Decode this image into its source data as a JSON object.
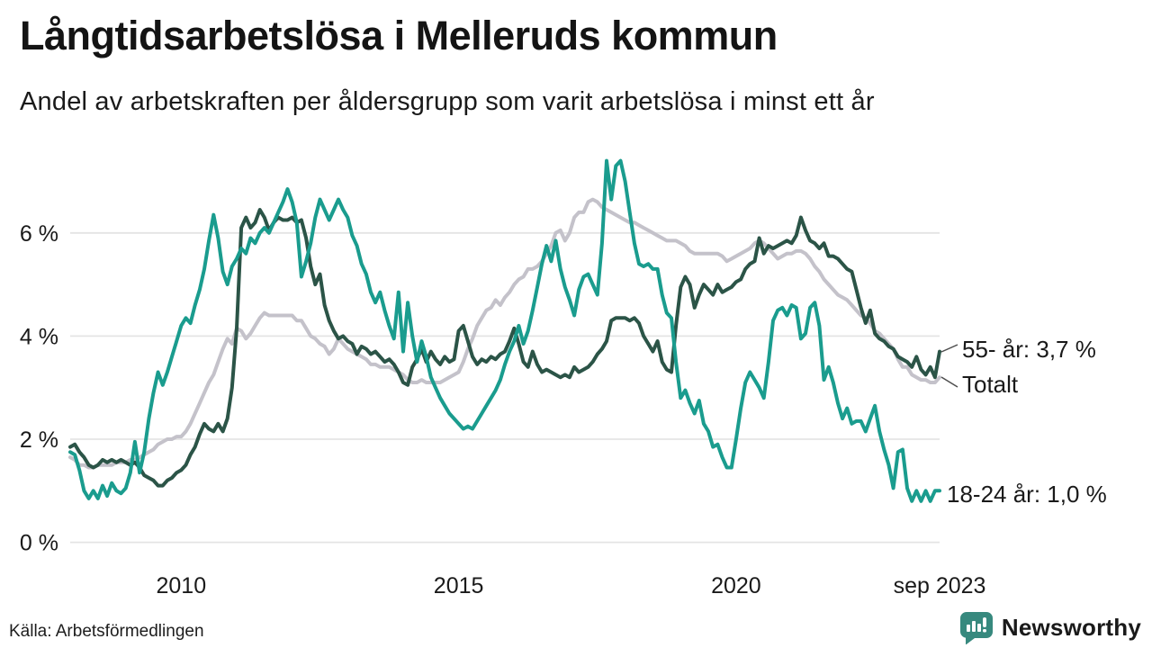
{
  "title": "Långtidsarbetslösa i Melleruds kommun",
  "subtitle": "Andel av arbetskraften per åldersgrupp som varit arbetslösa i minst ett år",
  "source": "Källa: Arbetsförmedlingen",
  "branding": {
    "name": "Newsworthy",
    "color": "#37897e"
  },
  "colors": {
    "series_18_24": "#1a9c8e",
    "series_55_plus": "#2b5447",
    "series_total": "#c4c2ca",
    "grid": "#e4e4e4",
    "text": "#1a1a1a",
    "leader_line": "#4d4d4d"
  },
  "chart_data": {
    "type": "line",
    "title": "Långtidsarbetslösa i Melleruds kommun",
    "subtitle": "Andel av arbetskraften per åldersgrupp som varit arbetslösa i minst ett år",
    "unit": "% av arbetskraften",
    "frequency": "monthly",
    "x_start": "2008-01",
    "x_end": "2023-09",
    "ylim": [
      0,
      7.5
    ],
    "grid": true,
    "legend_position": "line-end-labels",
    "y_ticks": [
      {
        "value": 0,
        "label": "0 %"
      },
      {
        "value": 2,
        "label": "2 %"
      },
      {
        "value": 4,
        "label": "4 %"
      },
      {
        "value": 6,
        "label": "6 %"
      }
    ],
    "x_ticks": [
      {
        "t": 2010.0,
        "label": "2010"
      },
      {
        "t": 2015.0,
        "label": "2015"
      },
      {
        "t": 2020.0,
        "label": "2020"
      },
      {
        "t": 2023.667,
        "label": "sep 2023"
      }
    ],
    "series": [
      {
        "name": "Totalt",
        "color": "#c4c2ca",
        "end_label": "Totalt",
        "current_value": 3.2,
        "values": [
          1.65,
          1.6,
          1.5,
          1.5,
          1.45,
          1.45,
          1.5,
          1.5,
          1.5,
          1.5,
          1.55,
          1.55,
          1.55,
          1.6,
          1.6,
          1.65,
          1.7,
          1.75,
          1.8,
          1.9,
          1.95,
          2.0,
          2.0,
          2.05,
          2.05,
          2.15,
          2.3,
          2.5,
          2.7,
          2.9,
          3.1,
          3.25,
          3.5,
          3.75,
          3.95,
          3.85,
          4.15,
          4.1,
          3.95,
          4.05,
          4.2,
          4.35,
          4.45,
          4.4,
          4.4,
          4.4,
          4.4,
          4.4,
          4.4,
          4.3,
          4.3,
          4.15,
          4.0,
          3.95,
          3.85,
          3.8,
          3.65,
          3.75,
          3.95,
          3.85,
          3.75,
          3.7,
          3.65,
          3.6,
          3.55,
          3.45,
          3.45,
          3.4,
          3.4,
          3.4,
          3.35,
          3.3,
          3.25,
          3.15,
          3.1,
          3.1,
          3.15,
          3.1,
          3.1,
          3.1,
          3.1,
          3.15,
          3.2,
          3.25,
          3.3,
          3.5,
          3.75,
          3.95,
          4.2,
          4.35,
          4.5,
          4.55,
          4.7,
          4.6,
          4.75,
          4.85,
          5.0,
          5.1,
          5.15,
          5.3,
          5.3,
          5.35,
          5.45,
          5.6,
          5.75,
          6.0,
          6.05,
          5.85,
          6.0,
          6.3,
          6.4,
          6.4,
          6.6,
          6.65,
          6.6,
          6.5,
          6.45,
          6.4,
          6.35,
          6.3,
          6.25,
          6.2,
          6.2,
          6.15,
          6.1,
          6.05,
          6.0,
          5.95,
          5.9,
          5.85,
          5.85,
          5.85,
          5.8,
          5.75,
          5.65,
          5.6,
          5.6,
          5.6,
          5.6,
          5.6,
          5.6,
          5.55,
          5.45,
          5.5,
          5.55,
          5.6,
          5.65,
          5.7,
          5.8,
          5.85,
          5.8,
          5.7,
          5.6,
          5.5,
          5.55,
          5.6,
          5.6,
          5.65,
          5.65,
          5.6,
          5.5,
          5.35,
          5.25,
          5.1,
          5.0,
          4.9,
          4.8,
          4.75,
          4.7,
          4.6,
          4.5,
          4.4,
          4.35,
          4.25,
          4.1,
          4.05,
          3.95,
          3.85,
          3.75,
          3.55,
          3.4,
          3.4,
          3.25,
          3.2,
          3.15,
          3.15,
          3.1,
          3.1,
          3.2
        ]
      },
      {
        "name": "55- år",
        "color": "#2b5447",
        "end_label": "55- år: 3,7 %",
        "current_value": 3.7,
        "values": [
          1.85,
          1.9,
          1.75,
          1.65,
          1.5,
          1.45,
          1.5,
          1.6,
          1.55,
          1.6,
          1.55,
          1.6,
          1.55,
          1.5,
          1.55,
          1.45,
          1.3,
          1.25,
          1.2,
          1.1,
          1.1,
          1.2,
          1.25,
          1.35,
          1.4,
          1.5,
          1.7,
          1.85,
          2.1,
          2.3,
          2.2,
          2.15,
          2.3,
          2.15,
          2.4,
          3.0,
          4.15,
          6.1,
          6.3,
          6.1,
          6.2,
          6.45,
          6.3,
          6.05,
          6.2,
          6.3,
          6.25,
          6.25,
          6.3,
          6.2,
          6.25,
          5.9,
          5.35,
          5.0,
          5.2,
          4.6,
          4.3,
          4.1,
          3.95,
          4.0,
          3.9,
          3.85,
          3.65,
          3.8,
          3.75,
          3.65,
          3.7,
          3.6,
          3.5,
          3.55,
          3.45,
          3.3,
          3.1,
          3.05,
          3.4,
          3.55,
          3.75,
          3.5,
          3.7,
          3.55,
          3.45,
          3.6,
          3.5,
          3.55,
          4.1,
          4.2,
          3.9,
          3.6,
          3.45,
          3.55,
          3.5,
          3.6,
          3.55,
          3.65,
          3.7,
          3.9,
          4.15,
          3.85,
          3.5,
          3.4,
          3.7,
          3.45,
          3.3,
          3.35,
          3.3,
          3.25,
          3.2,
          3.25,
          3.2,
          3.4,
          3.3,
          3.35,
          3.4,
          3.5,
          3.65,
          3.75,
          3.9,
          4.3,
          4.35,
          4.35,
          4.35,
          4.3,
          4.35,
          4.25,
          4.0,
          3.85,
          3.7,
          3.9,
          3.5,
          3.35,
          3.3,
          4.2,
          4.95,
          5.15,
          5.0,
          4.55,
          4.8,
          5.0,
          4.9,
          4.8,
          5.0,
          4.85,
          4.9,
          4.95,
          5.05,
          5.1,
          5.3,
          5.4,
          5.45,
          5.9,
          5.6,
          5.75,
          5.7,
          5.75,
          5.8,
          5.85,
          5.8,
          5.95,
          6.3,
          6.05,
          5.85,
          5.8,
          5.7,
          5.8,
          5.55,
          5.55,
          5.5,
          5.4,
          5.3,
          5.25,
          4.9,
          4.55,
          4.25,
          4.5,
          4.05,
          3.95,
          3.9,
          3.8,
          3.75,
          3.6,
          3.55,
          3.5,
          3.4,
          3.6,
          3.35,
          3.25,
          3.4,
          3.2,
          3.7
        ]
      },
      {
        "name": "18-24 år",
        "color": "#1a9c8e",
        "end_label": "18-24 år: 1,0 %",
        "current_value": 1.0,
        "values": [
          1.75,
          1.7,
          1.4,
          1.0,
          0.85,
          1.0,
          0.85,
          1.1,
          0.9,
          1.15,
          1.0,
          0.95,
          1.05,
          1.35,
          1.95,
          1.35,
          1.75,
          2.4,
          2.9,
          3.3,
          3.05,
          3.3,
          3.6,
          3.9,
          4.2,
          4.35,
          4.25,
          4.6,
          4.9,
          5.3,
          5.85,
          6.35,
          5.9,
          5.25,
          5.0,
          5.35,
          5.5,
          5.7,
          5.6,
          5.9,
          5.8,
          6.0,
          6.1,
          6.0,
          6.2,
          6.4,
          6.6,
          6.85,
          6.6,
          6.2,
          5.15,
          5.45,
          5.8,
          6.3,
          6.65,
          6.45,
          6.25,
          6.45,
          6.65,
          6.45,
          6.3,
          5.95,
          5.75,
          5.4,
          5.2,
          4.85,
          4.65,
          4.85,
          4.5,
          4.2,
          3.95,
          4.85,
          3.7,
          4.65,
          4.0,
          3.5,
          3.9,
          3.6,
          3.2,
          3.0,
          2.8,
          2.65,
          2.5,
          2.4,
          2.3,
          2.2,
          2.25,
          2.2,
          2.35,
          2.5,
          2.65,
          2.8,
          2.95,
          3.15,
          3.45,
          3.7,
          3.9,
          4.2,
          3.85,
          4.1,
          4.5,
          4.95,
          5.4,
          5.75,
          5.45,
          5.85,
          5.3,
          4.95,
          4.7,
          4.4,
          4.9,
          5.15,
          5.2,
          5.0,
          4.8,
          5.8,
          7.4,
          6.65,
          7.3,
          7.4,
          7.0,
          6.4,
          5.8,
          5.4,
          5.35,
          5.4,
          5.3,
          5.3,
          4.8,
          4.45,
          4.35,
          3.5,
          2.8,
          2.95,
          2.7,
          2.5,
          2.75,
          2.3,
          2.15,
          1.85,
          1.9,
          1.65,
          1.45,
          1.45,
          2.0,
          2.6,
          3.1,
          3.3,
          3.15,
          3.0,
          2.8,
          3.5,
          4.3,
          4.5,
          4.55,
          4.4,
          4.6,
          4.55,
          3.95,
          4.05,
          4.55,
          4.65,
          4.2,
          3.15,
          3.4,
          3.1,
          2.7,
          2.4,
          2.6,
          2.3,
          2.35,
          2.35,
          2.15,
          2.4,
          2.65,
          2.15,
          1.8,
          1.5,
          1.05,
          1.75,
          1.8,
          1.05,
          0.8,
          1.0,
          0.8,
          1.0,
          0.8,
          1.0,
          1.0
        ]
      }
    ]
  }
}
